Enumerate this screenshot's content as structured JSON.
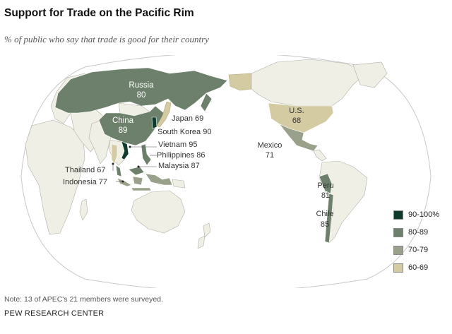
{
  "title": "Support for Trade on the Pacific Rim",
  "subtitle": "% of public who say that trade is good for their country",
  "note": "Note: 13 of APEC's 21 members were surveyed.",
  "source": "PEW RESEARCH CENTER",
  "colors": {
    "ocean": "#ffffff",
    "land": "#efefe6",
    "border": "#b0b0a8",
    "c90_100": "#0f3b2e",
    "c80_89": "#6c806b",
    "c70_79": "#9aa18a",
    "c60_69": "#d4cba2"
  },
  "legend": [
    {
      "label": "90-100%",
      "color": "#0f3b2e"
    },
    {
      "label": "80-89",
      "color": "#6c806b"
    },
    {
      "label": "70-79",
      "color": "#9aa18a"
    },
    {
      "label": "60-69",
      "color": "#d4cba2"
    }
  ],
  "countries": {
    "russia": {
      "name": "Russia",
      "value": "80"
    },
    "china": {
      "name": "China",
      "value": "89"
    },
    "japan": {
      "name": "Japan",
      "value": "69"
    },
    "south_korea": {
      "name": "South Korea",
      "value": "90"
    },
    "vietnam": {
      "name": "Vietnam",
      "value": "95"
    },
    "philippines": {
      "name": "Philippines",
      "value": "86"
    },
    "malaysia": {
      "name": "Malaysia",
      "value": "87"
    },
    "thailand": {
      "name": "Thailand",
      "value": "67"
    },
    "indonesia": {
      "name": "Indonesia",
      "value": "77"
    },
    "us": {
      "name": "U.S.",
      "value": "68"
    },
    "mexico": {
      "name": "Mexico",
      "value": "71"
    },
    "peru": {
      "name": "Peru",
      "value": "81"
    },
    "chile": {
      "name": "Chile",
      "value": "85"
    }
  },
  "labels": {
    "japan": "Japan 69",
    "south_korea": "South Korea 90",
    "vietnam": "Vietnam 95",
    "philippines": "Philippines 86",
    "malaysia": "Malaysia 87",
    "thailand": "Thailand 67",
    "indonesia": "Indonesia 77"
  }
}
